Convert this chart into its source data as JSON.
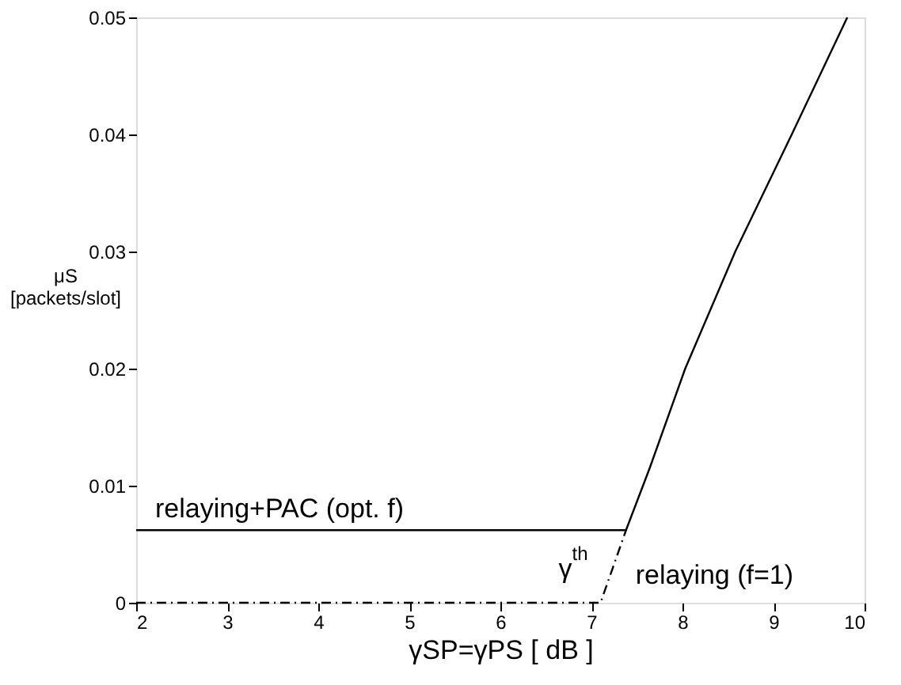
{
  "chart_data": {
    "type": "line",
    "xlabel": "γSP=γPS [ dB ]",
    "ylabel": "μS [packets/slot]",
    "series": [
      {
        "name": "relaying+PAC (opt. f)",
        "color": "#000000",
        "line_style": "solid",
        "x": [
          2,
          7.38,
          7.64,
          8.03,
          8.58,
          9.2,
          9.81
        ],
        "values": [
          0.0062,
          0.0062,
          0.0115,
          0.02,
          0.03,
          0.04,
          0.05
        ]
      },
      {
        "name": "relaying (f=1)",
        "color": "#000000",
        "line_style": "dashed",
        "x": [
          2,
          7.1,
          7.38
        ],
        "values": [
          0,
          0,
          0.0062
        ]
      }
    ],
    "annotations": [
      {
        "text": "γ$^{th}$",
        "x": 7.1,
        "y": 0
      }
    ],
    "xlim": [
      2,
      10
    ],
    "xticks": [
      2,
      3,
      4,
      5,
      6,
      7,
      8,
      9,
      10
    ],
    "ylim": [
      0,
      0.05
    ],
    "yticks": [
      0,
      0.01,
      0.02,
      0.03,
      0.04,
      0.05
    ],
    "grid": false,
    "marker": "none"
  }
}
